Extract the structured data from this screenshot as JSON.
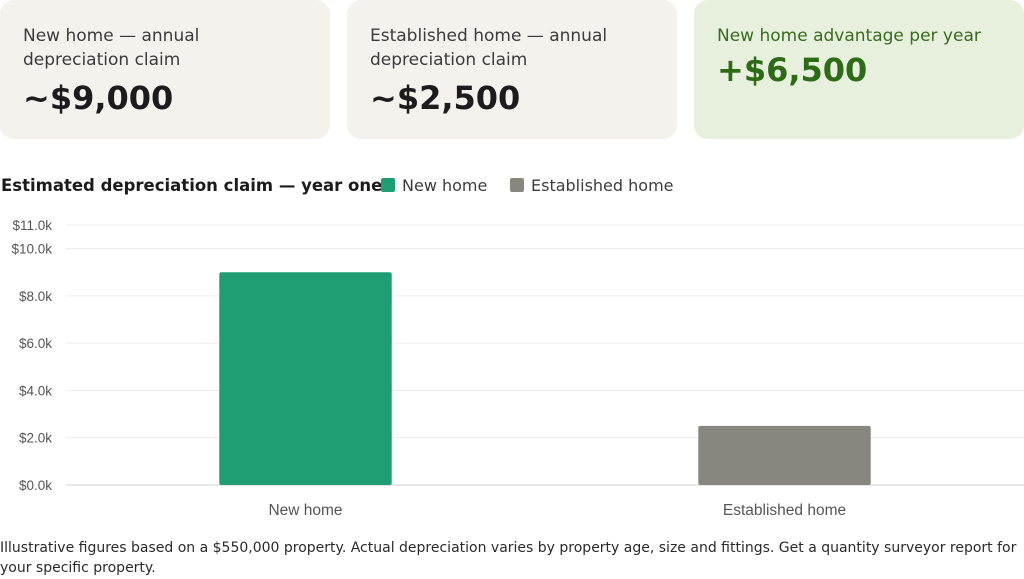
{
  "cards": [
    {
      "label": "New home — annual depreciation claim",
      "value": "~$9,000"
    },
    {
      "label": "Established home — annual depreciation claim",
      "value": "~$2,500"
    },
    {
      "label": "New home advantage per year",
      "value": "+$6,500"
    }
  ],
  "chart_data": {
    "type": "bar",
    "title": "Estimated depreciation claim — year one",
    "categories": [
      "New home",
      "Established home"
    ],
    "values": [
      9000,
      2500
    ],
    "colors": [
      "#1f9e74",
      "#878780"
    ],
    "ylim": [
      0,
      11000
    ],
    "yticks": [
      0,
      2000,
      4000,
      6000,
      8000,
      10000,
      11000
    ],
    "ytick_labels": [
      "$0.0k",
      "$2.0k",
      "$4.0k",
      "$6.0k",
      "$8.0k",
      "$10.0k",
      "$11.0k"
    ],
    "legend": [
      {
        "name": "New home",
        "color": "#1f9e74"
      },
      {
        "name": "Established home",
        "color": "#878780"
      }
    ],
    "legend_placement": "top",
    "grid": true
  },
  "footnote": "Illustrative figures based on a $550,000 property. Actual depreciation varies by property age, size and fittings. Get a quantity surveyor report for your specific property."
}
